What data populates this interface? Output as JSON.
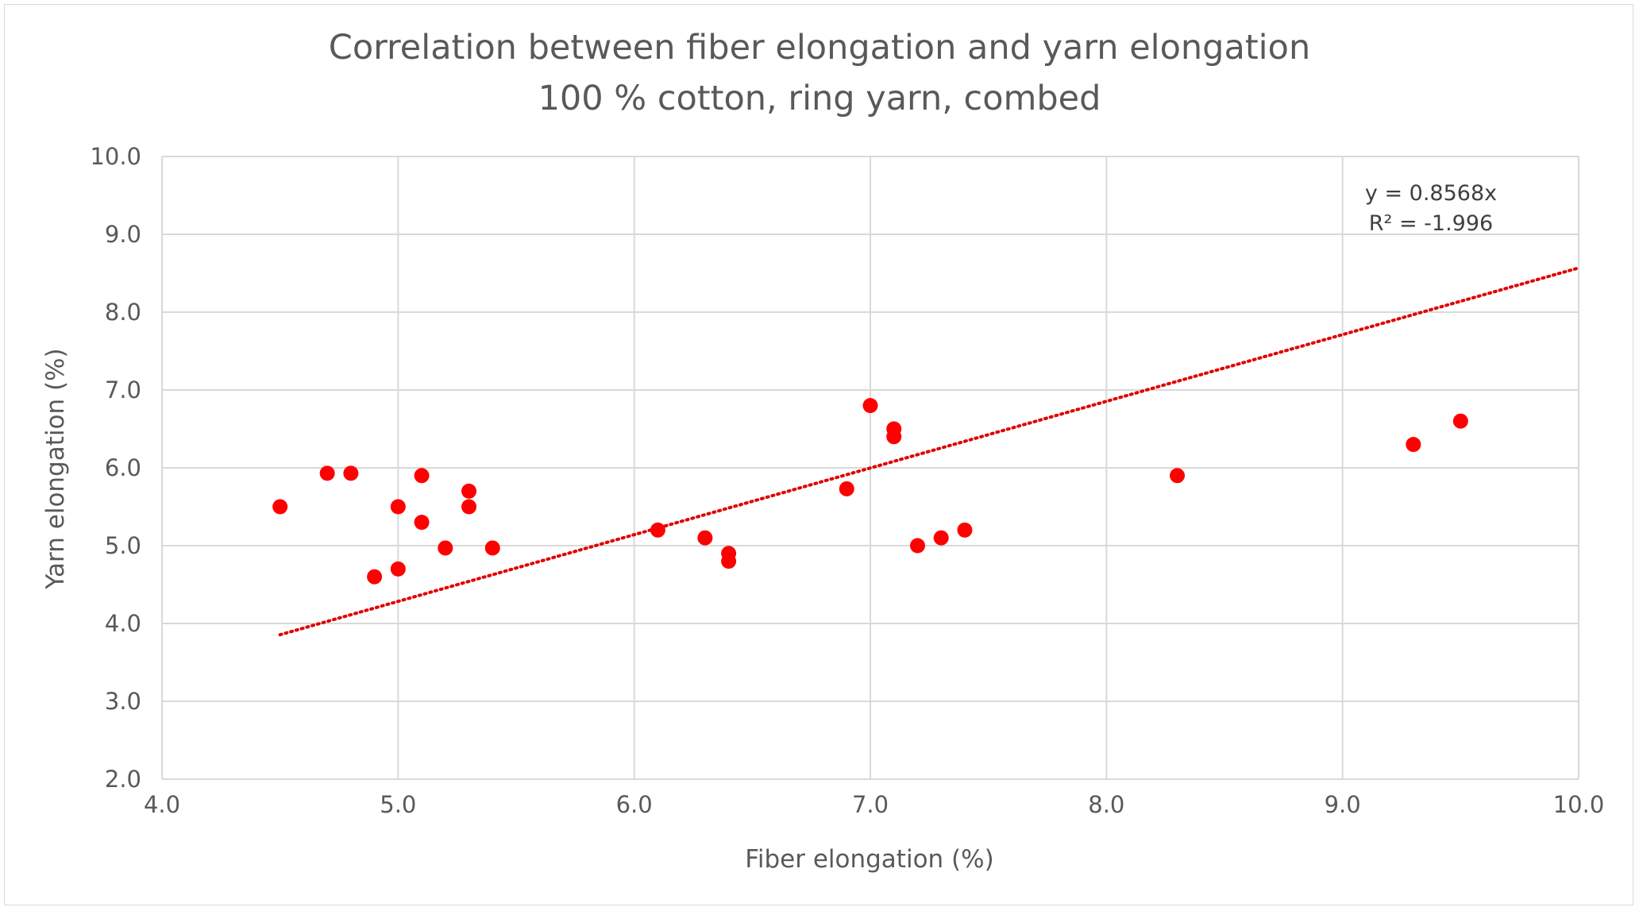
{
  "chart_data": {
    "type": "scatter",
    "title": "Correlation between fiber elongation and yarn elongation",
    "subtitle": "100 % cotton, ring yarn, combed",
    "xlabel": "Fiber elongation (%)",
    "ylabel": "Yarn elongation (%)",
    "xlim": [
      4.0,
      10.0
    ],
    "ylim": [
      2.0,
      10.0
    ],
    "x_ticks": [
      "4.0",
      "5.0",
      "6.0",
      "7.0",
      "8.0",
      "9.0",
      "10.0"
    ],
    "y_ticks": [
      "2.0",
      "3.0",
      "4.0",
      "5.0",
      "6.0",
      "7.0",
      "8.0",
      "9.0",
      "10.0"
    ],
    "grid": true,
    "legend": "none",
    "marker_color": "#ff0000",
    "trendline_color": "#e00000",
    "series": [
      {
        "points": [
          {
            "x": 4.5,
            "y": 5.5
          },
          {
            "x": 4.7,
            "y": 5.93
          },
          {
            "x": 4.8,
            "y": 5.93
          },
          {
            "x": 4.9,
            "y": 4.6
          },
          {
            "x": 5.0,
            "y": 5.5
          },
          {
            "x": 5.0,
            "y": 4.7
          },
          {
            "x": 5.1,
            "y": 5.9
          },
          {
            "x": 5.1,
            "y": 5.3
          },
          {
            "x": 5.2,
            "y": 4.97
          },
          {
            "x": 5.3,
            "y": 5.7
          },
          {
            "x": 5.3,
            "y": 5.5
          },
          {
            "x": 5.4,
            "y": 4.97
          },
          {
            "x": 6.1,
            "y": 5.2
          },
          {
            "x": 6.3,
            "y": 5.1
          },
          {
            "x": 6.4,
            "y": 4.9
          },
          {
            "x": 6.4,
            "y": 4.8
          },
          {
            "x": 6.9,
            "y": 5.73
          },
          {
            "x": 7.0,
            "y": 6.8
          },
          {
            "x": 7.1,
            "y": 6.5
          },
          {
            "x": 7.1,
            "y": 6.4
          },
          {
            "x": 7.2,
            "y": 5.0
          },
          {
            "x": 7.3,
            "y": 5.1
          },
          {
            "x": 7.4,
            "y": 5.2
          },
          {
            "x": 8.3,
            "y": 5.9
          },
          {
            "x": 9.3,
            "y": 6.3
          },
          {
            "x": 9.5,
            "y": 6.6
          }
        ]
      }
    ],
    "trendline": {
      "slope": 0.8568,
      "intercept": 0,
      "x_start": 4.5,
      "x_end": 10.0,
      "equation_label": "y = 0.8568x",
      "r2_label": "R² = -1.996"
    }
  }
}
